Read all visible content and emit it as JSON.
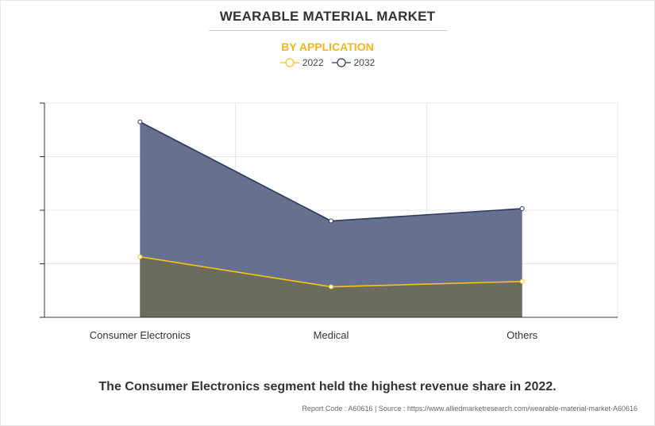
{
  "header": {
    "title": "WEARABLE MATERIAL MARKET",
    "subtitle": "BY APPLICATION"
  },
  "legend": {
    "items": [
      {
        "label": "2022",
        "color": "#f5c518"
      },
      {
        "label": "2032",
        "color": "#2c3a5e"
      }
    ]
  },
  "caption": "The Consumer Electronics segment held the highest revenue share in 2022.",
  "footer": {
    "report_code": "Report Code : A60616",
    "separator": "|",
    "source": "Source : https://www.alliedmarketresearch.com/wearable-material-market-A60616"
  },
  "chart_data": {
    "type": "area",
    "categories": [
      "Consumer Electronics",
      "Medical",
      "Others"
    ],
    "series": [
      {
        "name": "2032",
        "values": [
          3.65,
          1.8,
          2.03
        ],
        "color": "#2c3a5e",
        "fill": "#67718f"
      },
      {
        "name": "2022",
        "values": [
          1.13,
          0.57,
          0.67
        ],
        "color": "#f5c518",
        "fill": "#6b6b5e"
      }
    ],
    "ylim": [
      0,
      4
    ],
    "y_ticks": [
      0,
      1,
      2,
      3,
      4
    ],
    "y_tick_labels_shown": false,
    "grid": true,
    "legend_position": "top-center",
    "title": "WEARABLE MATERIAL MARKET",
    "xlabel": "",
    "ylabel": ""
  }
}
